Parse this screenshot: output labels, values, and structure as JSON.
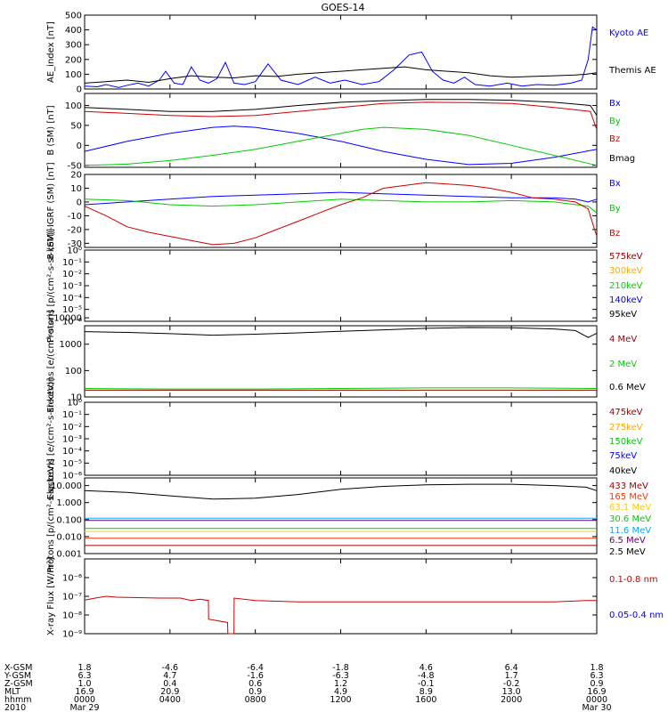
{
  "title": "GOES-14",
  "chart_data": [
    {
      "type": "line",
      "ylabel": "AE_index [nT]",
      "yscale": "linear",
      "ylim": [
        0,
        500
      ],
      "yticks": [
        "0",
        "100",
        "200",
        "300",
        "400",
        "500"
      ],
      "legend": [
        {
          "name": "Kyoto AE",
          "color": "#0000ff"
        },
        {
          "name": "Themis AE",
          "color": "#000000"
        }
      ],
      "series": [
        {
          "name": "Kyoto AE",
          "color": "#0000ff",
          "x": [
            0,
            0.6,
            1.0,
            1.6,
            2.0,
            2.5,
            3.0,
            3.5,
            3.8,
            4.2,
            4.6,
            5.0,
            5.4,
            5.8,
            6.2,
            6.6,
            7.0,
            7.5,
            8.0,
            8.6,
            9.2,
            10.0,
            10.8,
            11.5,
            12.2,
            13.0,
            13.8,
            14.5,
            15.2,
            15.8,
            16.3,
            16.8,
            17.3,
            17.8,
            18.3,
            19.0,
            19.8,
            20.5,
            21.2,
            22.0,
            22.8,
            23.3,
            23.6,
            23.8,
            24
          ],
          "y": [
            20,
            15,
            30,
            10,
            25,
            40,
            20,
            60,
            120,
            40,
            30,
            150,
            60,
            40,
            70,
            180,
            40,
            30,
            50,
            170,
            60,
            30,
            80,
            40,
            60,
            30,
            50,
            130,
            230,
            250,
            120,
            60,
            40,
            80,
            30,
            20,
            40,
            20,
            30,
            25,
            40,
            60,
            200,
            420,
            400
          ]
        },
        {
          "name": "Themis AE",
          "color": "#000000",
          "x": [
            0,
            1,
            2,
            3,
            4,
            5,
            6,
            7,
            8,
            9,
            10,
            11,
            12,
            13,
            14,
            15,
            16,
            17,
            18,
            19,
            20,
            21,
            22,
            23,
            23.5,
            24
          ],
          "y": [
            40,
            50,
            60,
            45,
            70,
            90,
            80,
            75,
            90,
            85,
            100,
            110,
            120,
            130,
            140,
            150,
            130,
            120,
            110,
            90,
            80,
            85,
            90,
            95,
            100,
            110
          ]
        }
      ]
    },
    {
      "type": "line",
      "ylabel": "B (SM) [nT]",
      "yscale": "linear",
      "ylim": [
        -55,
        130
      ],
      "yticks": [
        "-50",
        "0",
        "50",
        "100"
      ],
      "legend": [
        {
          "name": "Bx",
          "color": "#0000ff"
        },
        {
          "name": "By",
          "color": "#00cc00"
        },
        {
          "name": "Bz",
          "color": "#cc0000"
        },
        {
          "name": "Bmag",
          "color": "#000000"
        }
      ],
      "series": [
        {
          "name": "Bx",
          "color": "#0000ff",
          "x": [
            0,
            2,
            4,
            6,
            7,
            8,
            10,
            12,
            14,
            16,
            18,
            20,
            22,
            24
          ],
          "y": [
            -15,
            10,
            30,
            45,
            48,
            45,
            30,
            10,
            -15,
            -35,
            -48,
            -45,
            -30,
            -10
          ]
        },
        {
          "name": "By",
          "color": "#00cc00",
          "x": [
            0,
            2,
            4,
            6,
            8,
            10,
            12,
            13,
            14,
            16,
            18,
            20,
            22,
            24
          ],
          "y": [
            -50,
            -47,
            -38,
            -25,
            -10,
            10,
            30,
            40,
            45,
            40,
            25,
            0,
            -25,
            -50
          ]
        },
        {
          "name": "Bz",
          "color": "#cc0000",
          "x": [
            0,
            2,
            4,
            6,
            8,
            10,
            12,
            14,
            16,
            18,
            20,
            22,
            23.7,
            24
          ],
          "y": [
            85,
            80,
            75,
            72,
            75,
            85,
            95,
            105,
            108,
            107,
            105,
            95,
            85,
            40
          ]
        },
        {
          "name": "Bmag",
          "color": "#000000",
          "x": [
            0,
            2,
            4,
            6,
            8,
            10,
            12,
            14,
            16,
            18,
            20,
            22,
            23.7,
            24
          ],
          "y": [
            95,
            90,
            85,
            85,
            90,
            100,
            108,
            112,
            115,
            115,
            113,
            108,
            100,
            75
          ]
        }
      ]
    },
    {
      "type": "line",
      "ylabel": "B (SM)-IGRF (SM) [nT]",
      "yscale": "linear",
      "ylim": [
        -33,
        20
      ],
      "yticks": [
        "-30",
        "-20",
        "-10",
        "0",
        "10",
        "20"
      ],
      "legend": [
        {
          "name": "Bx",
          "color": "#0000ff"
        },
        {
          "name": "By",
          "color": "#00cc00"
        },
        {
          "name": "Bz",
          "color": "#cc0000"
        }
      ],
      "series": [
        {
          "name": "Bx",
          "color": "#0000ff",
          "x": [
            0,
            2,
            4,
            6,
            8,
            10,
            12,
            14,
            16,
            18,
            20,
            22,
            23,
            23.6,
            24
          ],
          "y": [
            -2,
            0,
            2,
            4,
            5,
            6,
            7,
            6,
            5,
            4,
            3,
            3,
            2,
            0,
            2
          ]
        },
        {
          "name": "By",
          "color": "#00cc00",
          "x": [
            0,
            2,
            4,
            6,
            8,
            10,
            12,
            14,
            16,
            18,
            20,
            22,
            23.6,
            24
          ],
          "y": [
            2,
            1,
            -2,
            -3,
            -2,
            0,
            2,
            1,
            0,
            0,
            1,
            0,
            -3,
            -8
          ]
        },
        {
          "name": "Bz",
          "color": "#cc0000",
          "x": [
            0,
            1,
            2,
            3,
            4,
            5,
            6,
            7,
            8,
            9,
            10,
            11,
            12,
            13,
            14,
            15,
            16,
            17,
            18,
            19,
            20,
            21,
            22,
            23,
            23.6,
            24
          ],
          "y": [
            -3,
            -10,
            -18,
            -22,
            -25,
            -28,
            -31,
            -30,
            -26,
            -20,
            -14,
            -8,
            -2,
            3,
            10,
            12,
            14,
            13,
            12,
            10,
            7,
            3,
            2,
            0,
            -5,
            -25
          ]
        }
      ]
    },
    {
      "type": "line",
      "ylabel": "Protons [p/(cm²-s-sr-keV)]",
      "yscale": "log",
      "ylim": [
        -6,
        0
      ],
      "yticks": [
        "10⁻⁶",
        "10⁻⁵",
        "10⁻⁴",
        "10⁻³",
        "10⁻²",
        "10⁻¹",
        "10⁰"
      ],
      "legend": [
        {
          "name": "575keV",
          "color": "#990000"
        },
        {
          "name": "300keV",
          "color": "#ffaa00"
        },
        {
          "name": "210keV",
          "color": "#00cc00"
        },
        {
          "name": "140keV",
          "color": "#0000ff"
        },
        {
          "name": "95keV",
          "color": "#000000"
        }
      ],
      "series": []
    },
    {
      "type": "line",
      "ylabel": "Electrons [e/(cm²-s-sr)]",
      "yscale": "log",
      "ylim": [
        1,
        3.7
      ],
      "yticks": [
        "10",
        "100",
        "1000",
        "10000"
      ],
      "legend": [
        {
          "name": "4 MeV",
          "color": "#990000"
        },
        {
          "name": "2 MeV",
          "color": "#00cc00"
        },
        {
          "name": "0.6 MeV",
          "color": "#000000"
        }
      ],
      "series": [
        {
          "name": "0.6 MeV",
          "color": "#000000",
          "x": [
            0,
            2,
            4,
            6,
            8,
            10,
            12,
            14,
            16,
            18,
            20,
            22,
            23,
            23.6,
            24
          ],
          "y": [
            3000,
            2800,
            2500,
            2200,
            2400,
            2700,
            3100,
            3500,
            4000,
            4300,
            4200,
            3800,
            3300,
            1800,
            2600
          ]
        },
        {
          "name": "2 MeV",
          "color": "#00cc00",
          "x": [
            0,
            4,
            8,
            12,
            16,
            20,
            24
          ],
          "y": [
            21,
            20,
            20,
            21,
            22,
            22,
            21
          ]
        },
        {
          "name": "4 MeV",
          "color": "#990000",
          "x": [
            0,
            4,
            8,
            12,
            16,
            20,
            24
          ],
          "y": [
            18,
            18,
            18,
            18,
            18,
            18,
            18
          ]
        }
      ]
    },
    {
      "type": "line",
      "ylabel": "Electrons [e/(cm²-s-sr-keV)]",
      "yscale": "log",
      "ylim": [
        -6,
        0
      ],
      "yticks": [
        "10⁻⁶",
        "10⁻⁵",
        "10⁻⁴",
        "10⁻³",
        "10⁻²",
        "10⁻¹",
        "10⁰"
      ],
      "legend": [
        {
          "name": "475keV",
          "color": "#990000"
        },
        {
          "name": "275keV",
          "color": "#ffaa00"
        },
        {
          "name": "150keV",
          "color": "#00cc00"
        },
        {
          "name": "75keV",
          "color": "#0000ff"
        },
        {
          "name": "40keV",
          "color": "#000000"
        }
      ],
      "series": []
    },
    {
      "type": "line",
      "ylabel": "Protons [p/(cm²-s-sr-keV)]",
      "yscale": "log",
      "ylim": [
        -3,
        1.45
      ],
      "yticks": [
        "0.001",
        "0.010",
        "0.100",
        "1.000",
        "10.000"
      ],
      "legend": [
        {
          "name": "433 MeV",
          "color": "#990000"
        },
        {
          "name": "165 MeV",
          "color": "#ff3300"
        },
        {
          "name": "63.1 MeV",
          "color": "#ffcc00"
        },
        {
          "name": "30.6 MeV",
          "color": "#00cc00"
        },
        {
          "name": "11.6 MeV",
          "color": "#00aaff"
        },
        {
          "name": "6.5 MeV",
          "color": "#660066"
        },
        {
          "name": "2.5 MeV",
          "color": "#000000"
        }
      ],
      "series": [
        {
          "name": "2.5 MeV",
          "color": "#000000",
          "x": [
            0,
            2,
            4,
            6,
            8,
            10,
            12,
            14,
            16,
            18,
            20,
            22,
            23.5,
            24
          ],
          "y": [
            5,
            4,
            2.5,
            1.6,
            1.8,
            3,
            6,
            9,
            11,
            12,
            12,
            10,
            8,
            5
          ]
        },
        {
          "name": "11.6 MeV",
          "color": "#00aaff",
          "x": [
            0,
            4,
            8,
            12,
            16,
            20,
            24
          ],
          "y": [
            0.12,
            0.12,
            0.12,
            0.12,
            0.12,
            0.12,
            0.12
          ]
        },
        {
          "name": "6.5 MeV",
          "color": "#660066",
          "x": [
            0,
            4,
            8,
            12,
            16,
            20,
            24
          ],
          "y": [
            0.09,
            0.09,
            0.09,
            0.09,
            0.09,
            0.09,
            0.09
          ]
        },
        {
          "name": "30.6 MeV",
          "color": "#00cc00",
          "x": [
            0,
            4,
            8,
            12,
            16,
            20,
            24
          ],
          "y": [
            0.03,
            0.03,
            0.03,
            0.03,
            0.03,
            0.03,
            0.03
          ]
        },
        {
          "name": "63.1 MeV",
          "color": "#ffcc00",
          "x": [
            0,
            4,
            8,
            12,
            16,
            20,
            24
          ],
          "y": [
            0.02,
            0.02,
            0.02,
            0.02,
            0.02,
            0.02,
            0.02
          ]
        },
        {
          "name": "165 MeV",
          "color": "#ff3300",
          "x": [
            0,
            4,
            8,
            12,
            16,
            20,
            24
          ],
          "y": [
            0.008,
            0.008,
            0.008,
            0.008,
            0.008,
            0.008,
            0.008
          ]
        },
        {
          "name": "433 MeV",
          "color": "#990000",
          "x": [
            0,
            4,
            8,
            12,
            16,
            20,
            24
          ],
          "y": [
            0.003,
            0.003,
            0.003,
            0.003,
            0.003,
            0.003,
            0.003
          ]
        }
      ]
    },
    {
      "type": "line",
      "ylabel": "X-ray Flux [W/m²]",
      "yscale": "log",
      "ylim": [
        -9,
        -5
      ],
      "yticks": [
        "10⁻⁹",
        "10⁻⁸",
        "10⁻⁷",
        "10⁻⁶"
      ],
      "legend": [
        {
          "name": "0.1-0.8 nm",
          "color": "#cc0000"
        },
        {
          "name": "0.05-0.4 nm",
          "color": "#0000ff"
        }
      ],
      "series": [
        {
          "name": "0.1-0.8 nm",
          "color": "#cc0000",
          "x": [
            0,
            0.5,
            1.0,
            1.5,
            2.5,
            3.5,
            4.5,
            5.0,
            5.4,
            5.8,
            5.81,
            6.7,
            6.71,
            7.0,
            7.01,
            8.0,
            10.0,
            12.0,
            14.0,
            16.0,
            18.0,
            20.0,
            22.0,
            23.5,
            24
          ],
          "y": [
            6.3e-08,
            8e-08,
            1e-07,
            9e-08,
            8.5e-08,
            8e-08,
            8e-08,
            6e-08,
            7e-08,
            6e-08,
            6e-09,
            4e-09,
            1e-09,
            1e-09,
            8e-08,
            6e-08,
            5e-08,
            5e-08,
            5e-08,
            5e-08,
            5e-08,
            5e-08,
            5e-08,
            6e-08,
            6e-08
          ]
        }
      ]
    }
  ],
  "xaxis": {
    "hours": [
      0,
      4,
      8,
      12,
      16,
      20,
      24
    ],
    "rows": [
      {
        "label": "X-GSM",
        "values": [
          "1.8",
          "-4.6",
          "-6.4",
          "-1.8",
          "4.6",
          "6.4",
          "1.8"
        ]
      },
      {
        "label": "Y-GSM",
        "values": [
          "6.3",
          "4.7",
          "-1.6",
          "-6.3",
          "-4.8",
          "1.7",
          "6.3"
        ]
      },
      {
        "label": "Z-GSM",
        "values": [
          "1.0",
          "0.4",
          "0.6",
          "1.2",
          "-0.1",
          "-0.2",
          "0.9"
        ]
      },
      {
        "label": "MLT",
        "values": [
          "16.9",
          "20.9",
          "0.9",
          "4.9",
          "8.9",
          "13.0",
          "16.9"
        ]
      },
      {
        "label": "hhmm",
        "values": [
          "0000",
          "0400",
          "0800",
          "1200",
          "1600",
          "2000",
          "0000"
        ]
      },
      {
        "label": "2010",
        "values": [
          "Mar 29",
          "",
          "",
          "",
          "",
          "",
          "Mar 30"
        ]
      }
    ]
  }
}
